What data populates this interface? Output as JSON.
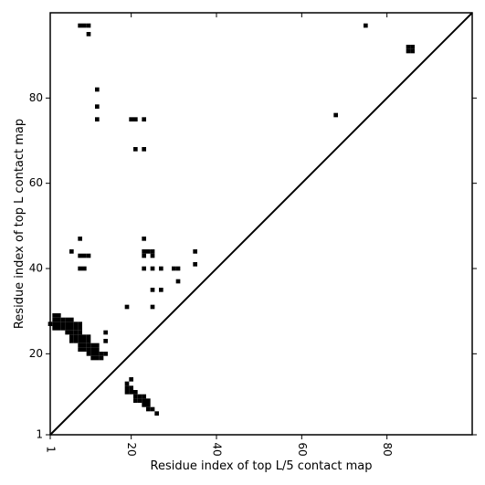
{
  "chart_data": {
    "type": "heatmap",
    "subtype": "contact-map",
    "title": "",
    "xlabel": "Residue index of top L/5 contact map",
    "ylabel": "Residue index of top L contact map",
    "xlim": [
      1,
      100
    ],
    "ylim": [
      1,
      100
    ],
    "x_ticks": [
      "1",
      "20",
      "40",
      "60",
      "80"
    ],
    "y_ticks": [
      "1",
      "20",
      "40",
      "60",
      "80"
    ],
    "diagonal": true,
    "cell_color": "#000000",
    "background": "#ffffff",
    "grid": false,
    "upper_triangle_contacts": [
      [
        8,
        97
      ],
      [
        9,
        97
      ],
      [
        10,
        97
      ],
      [
        10,
        95
      ],
      [
        12,
        82
      ],
      [
        12,
        78
      ],
      [
        12,
        75
      ],
      [
        20,
        75
      ],
      [
        21,
        75
      ],
      [
        23,
        75
      ],
      [
        21,
        68
      ],
      [
        23,
        68
      ],
      [
        75,
        97
      ],
      [
        68,
        76
      ],
      [
        85,
        92
      ],
      [
        85,
        91
      ],
      [
        86,
        92
      ],
      [
        86,
        91
      ],
      [
        23,
        47
      ],
      [
        23,
        44
      ],
      [
        24,
        44
      ],
      [
        25,
        44
      ],
      [
        23,
        43
      ],
      [
        25,
        43
      ],
      [
        23,
        40
      ],
      [
        25,
        40
      ],
      [
        27,
        40
      ],
      [
        30,
        40
      ],
      [
        31,
        40
      ],
      [
        31,
        37
      ],
      [
        25,
        35
      ],
      [
        27,
        35
      ],
      [
        25,
        31
      ],
      [
        19,
        31
      ],
      [
        35,
        44
      ],
      [
        35,
        41
      ],
      [
        6,
        44
      ],
      [
        8,
        47
      ],
      [
        8,
        43
      ],
      [
        9,
        43
      ],
      [
        10,
        43
      ],
      [
        8,
        40
      ],
      [
        9,
        40
      ]
    ],
    "lower_triangle_contacts": [
      [
        1,
        27
      ],
      [
        2,
        29
      ],
      [
        2,
        28
      ],
      [
        2,
        27
      ],
      [
        2,
        26
      ],
      [
        3,
        29
      ],
      [
        3,
        28
      ],
      [
        3,
        27
      ],
      [
        3,
        26
      ],
      [
        4,
        28
      ],
      [
        4,
        27
      ],
      [
        4,
        26
      ],
      [
        5,
        28
      ],
      [
        5,
        27
      ],
      [
        5,
        26
      ],
      [
        5,
        25
      ],
      [
        6,
        28
      ],
      [
        6,
        27
      ],
      [
        6,
        26
      ],
      [
        6,
        25
      ],
      [
        6,
        24
      ],
      [
        6,
        23
      ],
      [
        7,
        27
      ],
      [
        7,
        26
      ],
      [
        7,
        25
      ],
      [
        7,
        24
      ],
      [
        7,
        23
      ],
      [
        8,
        27
      ],
      [
        8,
        26
      ],
      [
        8,
        25
      ],
      [
        8,
        24
      ],
      [
        8,
        23
      ],
      [
        8,
        22
      ],
      [
        8,
        21
      ],
      [
        9,
        24
      ],
      [
        9,
        23
      ],
      [
        9,
        22
      ],
      [
        9,
        21
      ],
      [
        10,
        24
      ],
      [
        10,
        23
      ],
      [
        10,
        22
      ],
      [
        10,
        21
      ],
      [
        10,
        20
      ],
      [
        11,
        22
      ],
      [
        11,
        21
      ],
      [
        11,
        20
      ],
      [
        11,
        19
      ],
      [
        12,
        22
      ],
      [
        12,
        21
      ],
      [
        12,
        20
      ],
      [
        12,
        19
      ],
      [
        13,
        20
      ],
      [
        13,
        19
      ],
      [
        14,
        20
      ],
      [
        14,
        25
      ],
      [
        14,
        23
      ],
      [
        19,
        13
      ],
      [
        19,
        12
      ],
      [
        19,
        11
      ],
      [
        20,
        14
      ],
      [
        20,
        12
      ],
      [
        20,
        11
      ],
      [
        21,
        11
      ],
      [
        21,
        10
      ],
      [
        21,
        9
      ],
      [
        22,
        10
      ],
      [
        22,
        9
      ],
      [
        23,
        10
      ],
      [
        23,
        9
      ],
      [
        23,
        8
      ],
      [
        24,
        9
      ],
      [
        24,
        8
      ],
      [
        24,
        7
      ],
      [
        25,
        7
      ],
      [
        26,
        6
      ]
    ]
  }
}
